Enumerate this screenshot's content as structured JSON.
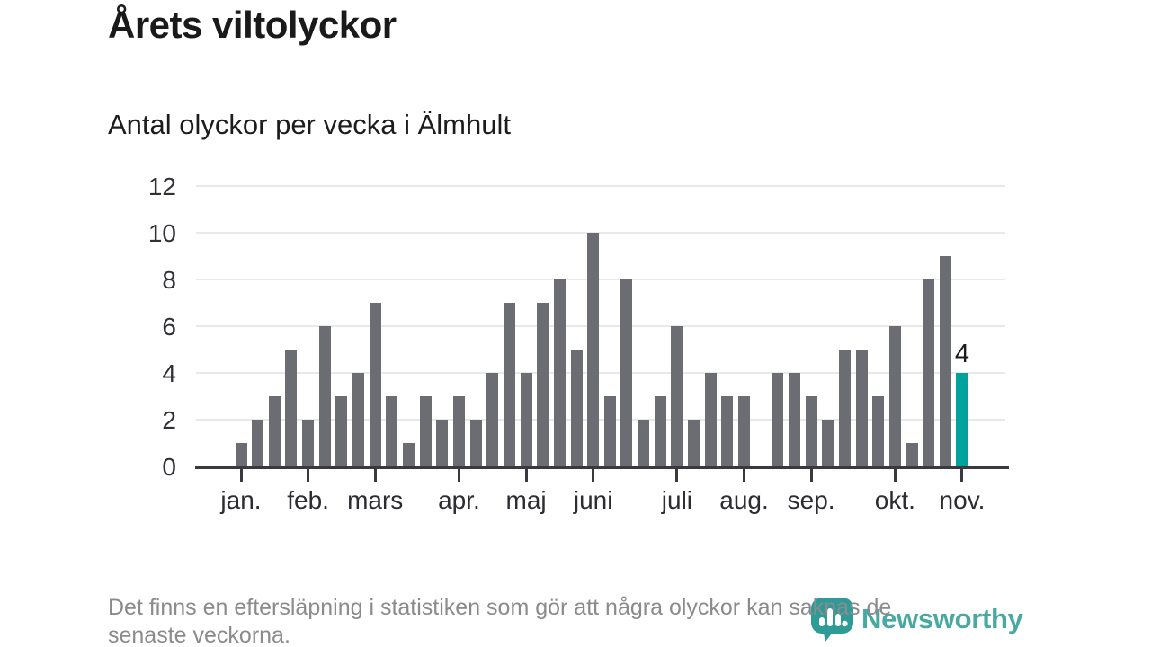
{
  "page": {
    "title": "Årets viltolyckor",
    "subtitle": "Antal olyckor per vecka i Älmhult",
    "footnote_lines": [
      "Det finns en eftersläpning i statistiken som gör att några olyckor kan saknas de",
      "senaste veckorna."
    ],
    "logo": {
      "wordmark": "Newsworthy",
      "icon": "speech-bubble-bar-chart-icon",
      "wordmark_color": "#48A8A2",
      "icon_color": "#2F9B96"
    }
  },
  "chart_data": {
    "type": "bar",
    "title": "Årets viltolyckor",
    "subtitle": "Antal olyckor per vecka i Älmhult",
    "ylabel": "",
    "xlabel": "",
    "values": [
      1,
      2,
      3,
      5,
      2,
      6,
      3,
      4,
      7,
      3,
      1,
      3,
      2,
      3,
      2,
      4,
      7,
      4,
      7,
      8,
      5,
      10,
      3,
      8,
      2,
      3,
      6,
      2,
      4,
      3,
      3,
      0,
      4,
      4,
      3,
      2,
      5,
      5,
      3,
      6,
      1,
      8,
      9,
      4
    ],
    "highlight": {
      "index": 43,
      "label": "4",
      "color": "#00A39B"
    },
    "bar_color": "#6C6C73",
    "grid_color": "#E9E9E9",
    "axis_color": "#3A3A3E",
    "ylim": [
      0,
      12
    ],
    "y_ticks": [
      0,
      2,
      4,
      6,
      8,
      10,
      12
    ],
    "x_tick_labels": [
      "jan.",
      "feb.",
      "mars",
      "apr.",
      "maj",
      "juni",
      "juli",
      "aug.",
      "sep.",
      "okt.",
      "nov."
    ],
    "x_tick_indices": [
      0,
      4,
      8,
      13,
      17,
      21,
      26,
      30,
      34,
      39,
      43
    ],
    "grid": "horizontal",
    "legend": "none"
  }
}
